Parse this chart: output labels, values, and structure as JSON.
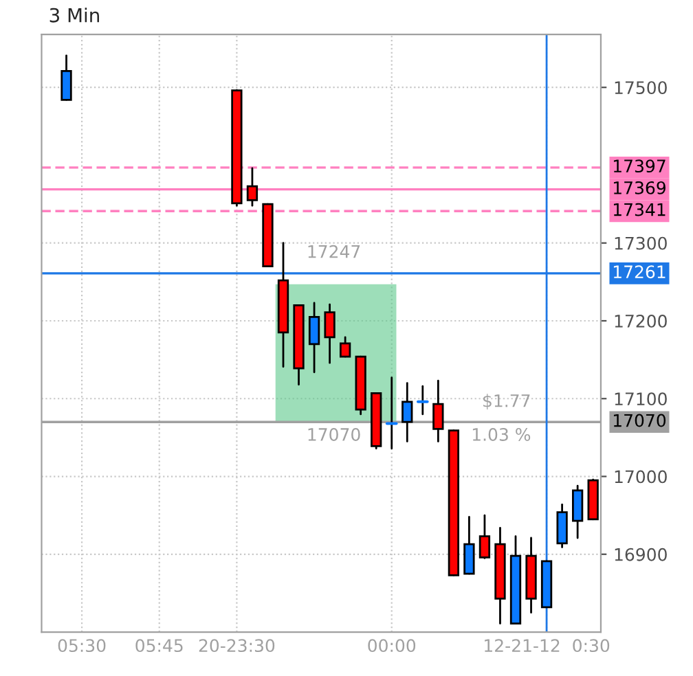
{
  "chart_data": {
    "type": "candlestick",
    "title": "3 Min",
    "categories": [
      null,
      null,
      "05:30",
      null,
      null,
      null,
      null,
      "05:45",
      null,
      null,
      null,
      null,
      "20-23:30",
      null,
      null,
      null,
      null,
      null,
      null,
      null,
      null,
      null,
      "00:00",
      null,
      null,
      null,
      null,
      null,
      null,
      null,
      null,
      null,
      "12-21-12  0:30",
      null,
      null,
      null
    ],
    "ohlc": [
      null,
      [
        17484,
        17541,
        17484,
        17521
      ],
      null,
      null,
      null,
      null,
      null,
      null,
      null,
      null,
      null,
      null,
      [
        17496,
        17496,
        17348,
        17351
      ],
      [
        17373,
        17396,
        17348,
        17355
      ],
      [
        17350,
        17350,
        17270,
        17270
      ],
      [
        17252,
        17300,
        17141,
        17185
      ],
      [
        17220,
        17220,
        17118,
        17139
      ],
      [
        17170,
        17223,
        17134,
        17205
      ],
      [
        17211,
        17221,
        17146,
        17179
      ],
      [
        17171,
        17179,
        17154,
        17154
      ],
      [
        17154,
        17154,
        17080,
        17086
      ],
      [
        17107,
        17107,
        17036,
        17039
      ],
      [
        17068,
        17127,
        17036,
        17068
      ],
      [
        17070,
        17120,
        17045,
        17096
      ],
      [
        17096,
        17116,
        17080,
        17096
      ],
      [
        17093,
        17123,
        17045,
        17061
      ],
      [
        17059,
        17059,
        16873,
        16873
      ],
      [
        16875,
        16948,
        16875,
        16913
      ],
      [
        16923,
        16950,
        16895,
        16896
      ],
      [
        16913,
        16934,
        16811,
        16843
      ],
      [
        16811,
        16923,
        16811,
        16898
      ],
      [
        16898,
        16921,
        16825,
        16843
      ],
      [
        16832,
        16891,
        16832,
        16891
      ],
      [
        16914,
        16964,
        16909,
        16954
      ],
      [
        16943,
        16988,
        16921,
        16982
      ],
      [
        16995,
        16996,
        16945,
        16945
      ]
    ],
    "colors": [
      null,
      "#0a7aff",
      null,
      null,
      null,
      null,
      null,
      null,
      null,
      null,
      null,
      null,
      "#ff0000",
      "#ff0000",
      "#ff0000",
      "#ff0000",
      "#ff0000",
      "#0a7aff",
      "#ff0000",
      "#ff0000",
      "#ff0000",
      "#ff0000",
      "#0a7aff",
      "#0a7aff",
      "#0a7aff",
      "#ff0000",
      "#ff0000",
      "#0a7aff",
      "#ff0000",
      "#ff0000",
      "#0a7aff",
      "#ff0000",
      "#0a7aff",
      "#0a7aff",
      "#0a7aff",
      "#ff0000"
    ],
    "ylim": [
      16800,
      17568
    ],
    "yticks": [
      16900,
      17000,
      17100,
      17200,
      17300,
      17500
    ],
    "ref_lines": [
      {
        "axis": "y",
        "value": 17397,
        "label": "17397",
        "color": "#ff80c0",
        "line_style": "dashed"
      },
      {
        "axis": "y",
        "value": 17369,
        "label": "17369",
        "color": "#ff80c0",
        "line_style": "solid"
      },
      {
        "axis": "y",
        "value": 17341,
        "label": "17341",
        "color": "#ff80c0",
        "line_style": "dashed"
      },
      {
        "axis": "y",
        "value": 17261,
        "label": "17261",
        "color": "#1e78e6",
        "line_style": "solid"
      },
      {
        "axis": "y",
        "value": 17070,
        "label": "17070",
        "color": "#a0a0a0",
        "line_style": "solid"
      },
      {
        "axis": "x",
        "value": "12-21-12  0:30",
        "label": null,
        "color": "#1e78e6",
        "line_style": "solid"
      }
    ],
    "bands": [
      {
        "axis": "y",
        "from": 17070,
        "to": 17247,
        "color": "#5cc88a"
      }
    ],
    "annotations": [
      {
        "text": "17247",
        "y": 17247
      },
      {
        "text": "17070",
        "y": 17070
      },
      "$1.77",
      "1.03 %"
    ],
    "grid": true,
    "legend": false
  }
}
